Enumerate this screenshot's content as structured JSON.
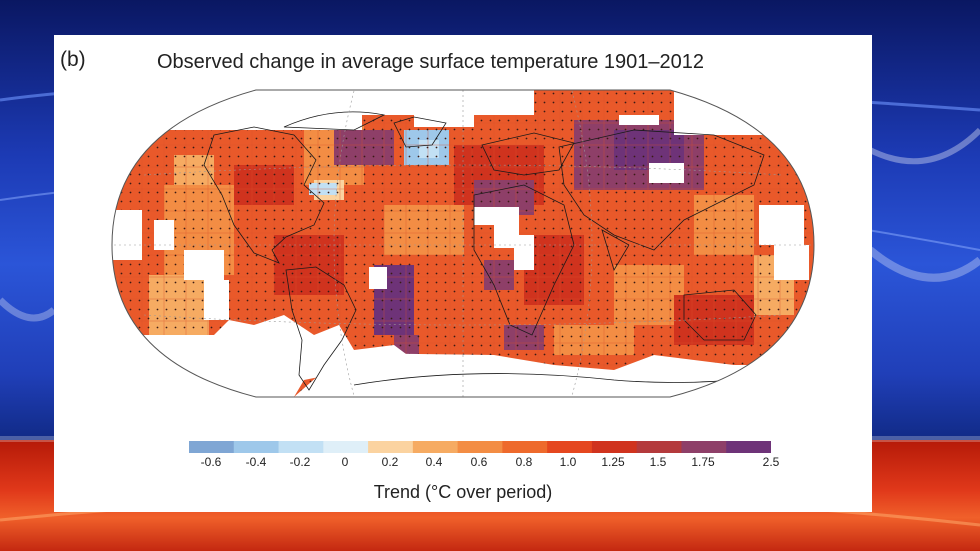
{
  "figure": {
    "panel_label": "(b)",
    "title": "Observed change in average surface temperature 1901–2012"
  },
  "legend": {
    "title": "Trend (°C over period)",
    "ticks": [
      "-0.6",
      "-0.4",
      "-0.2",
      "0",
      "0.2",
      "0.4",
      "0.6",
      "0.8",
      "1.0",
      "1.25",
      "1.5",
      "1.75",
      "2.5"
    ],
    "colors": [
      "#7fa6d4",
      "#9ec8ea",
      "#c2e0f4",
      "#dfeff8",
      "#fbd3a0",
      "#f6ab62",
      "#f38d44",
      "#ee6a2c",
      "#e5471f",
      "#d0331e",
      "#b43a3c",
      "#8e3f68",
      "#6e3378"
    ]
  },
  "map": {
    "projection": "Robinson",
    "ocean_color": "#ffffff",
    "missing_data_color": "#ffffff",
    "dominant_color": "#e9592a",
    "stippling": "significant trends"
  }
}
